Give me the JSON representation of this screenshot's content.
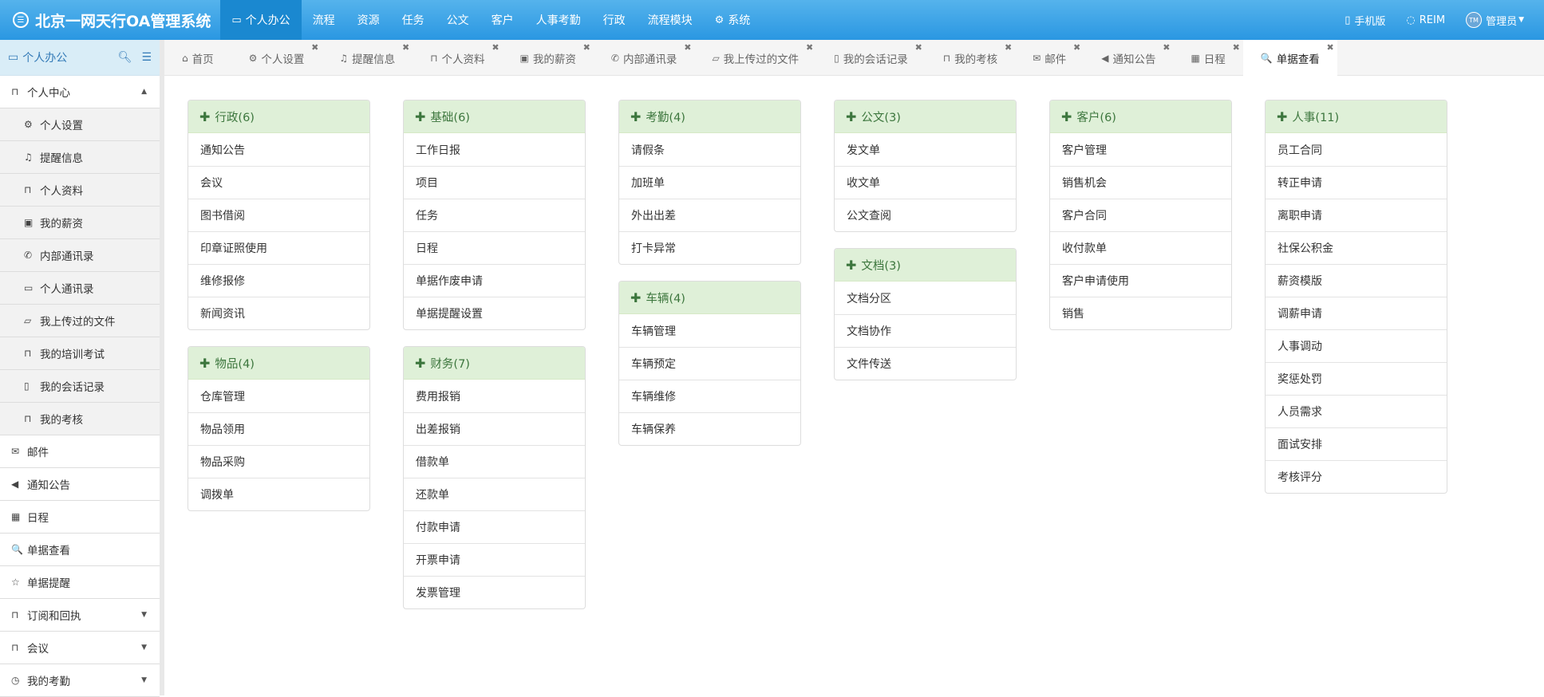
{
  "app": {
    "title": "北京一网天行OA管理系统",
    "logo_icon": "chat-bubble-icon"
  },
  "nav": [
    {
      "label": "个人办公",
      "icon": "desktop-icon",
      "active": true
    },
    {
      "label": "流程"
    },
    {
      "label": "资源"
    },
    {
      "label": "任务"
    },
    {
      "label": "公文"
    },
    {
      "label": "客户"
    },
    {
      "label": "人事考勤"
    },
    {
      "label": "行政"
    },
    {
      "label": "流程模块"
    },
    {
      "label": "系统",
      "icon": "gear-icon"
    }
  ],
  "right": {
    "mobile": "手机版",
    "reim": "REIM",
    "user": "管理员",
    "avatar_text": "TM"
  },
  "sidebar": {
    "title": "个人办公",
    "group": {
      "label": "个人中心",
      "items": [
        {
          "label": "个人设置",
          "icon": "gear-icon",
          "g": "⚙"
        },
        {
          "label": "提醒信息",
          "icon": "bell-icon",
          "g": "♫"
        },
        {
          "label": "个人资料",
          "icon": "bookmark-icon",
          "g": "⊓"
        },
        {
          "label": "我的薪资",
          "icon": "money-icon",
          "g": "▣"
        },
        {
          "label": "内部通讯录",
          "icon": "phone-icon",
          "g": "✆"
        },
        {
          "label": "个人通讯录",
          "icon": "credit-card-icon",
          "g": "▭"
        },
        {
          "label": "我上传过的文件",
          "icon": "folder-icon",
          "g": "▱"
        },
        {
          "label": "我的培训考试",
          "icon": "bookmark-icon",
          "g": "⊓"
        },
        {
          "label": "我的会话记录",
          "icon": "file-icon",
          "g": "▯"
        },
        {
          "label": "我的考核",
          "icon": "bookmark-icon",
          "g": "⊓"
        }
      ]
    },
    "items": [
      {
        "label": "邮件",
        "icon": "envelope-icon",
        "g": "✉"
      },
      {
        "label": "通知公告",
        "icon": "volume-icon",
        "g": "◀"
      },
      {
        "label": "日程",
        "icon": "calendar-icon",
        "g": "▦"
      },
      {
        "label": "单据查看",
        "icon": "search-icon",
        "g": "🔍"
      },
      {
        "label": "单据提醒",
        "icon": "star-icon",
        "g": "☆"
      },
      {
        "label": "订阅和回执",
        "icon": "bookmark-icon",
        "g": "⊓",
        "caret": true
      },
      {
        "label": "会议",
        "icon": "bookmark-icon",
        "g": "⊓",
        "caret": true
      },
      {
        "label": "我的考勤",
        "icon": "clock-icon",
        "g": "◷",
        "caret": true
      }
    ]
  },
  "tabs": [
    {
      "label": "首页",
      "icon": "home-icon",
      "g": "⌂",
      "closable": false
    },
    {
      "label": "个人设置",
      "icon": "gear-icon",
      "g": "⚙"
    },
    {
      "label": "提醒信息",
      "icon": "bell-icon",
      "g": "♫"
    },
    {
      "label": "个人资料",
      "icon": "bookmark-icon",
      "g": "⊓"
    },
    {
      "label": "我的薪资",
      "icon": "money-icon",
      "g": "▣"
    },
    {
      "label": "内部通讯录",
      "icon": "phone-icon",
      "g": "✆"
    },
    {
      "label": "我上传过的文件",
      "icon": "folder-icon",
      "g": "▱"
    },
    {
      "label": "我的会话记录",
      "icon": "file-icon",
      "g": "▯"
    },
    {
      "label": "我的考核",
      "icon": "bookmark-icon",
      "g": "⊓"
    },
    {
      "label": "邮件",
      "icon": "envelope-icon",
      "g": "✉"
    },
    {
      "label": "通知公告",
      "icon": "volume-icon",
      "g": "◀"
    },
    {
      "label": "日程",
      "icon": "calendar-icon",
      "g": "▦"
    },
    {
      "label": "单据查看",
      "icon": "search-icon",
      "g": "🔍",
      "active": true
    }
  ],
  "cards": [
    [
      {
        "title": "行政(6)",
        "items": [
          "通知公告",
          "会议",
          "图书借阅",
          "印章证照使用",
          "维修报修",
          "新闻资讯"
        ]
      },
      {
        "title": "物品(4)",
        "items": [
          "仓库管理",
          "物品领用",
          "物品采购",
          "调拨单"
        ]
      }
    ],
    [
      {
        "title": "基础(6)",
        "items": [
          "工作日报",
          "项目",
          "任务",
          "日程",
          "单据作废申请",
          "单据提醒设置"
        ]
      },
      {
        "title": "财务(7)",
        "items": [
          "费用报销",
          "出差报销",
          "借款单",
          "还款单",
          "付款申请",
          "开票申请",
          "发票管理"
        ]
      }
    ],
    [
      {
        "title": "考勤(4)",
        "items": [
          "请假条",
          "加班单",
          "外出出差",
          "打卡异常"
        ]
      },
      {
        "title": "车辆(4)",
        "items": [
          "车辆管理",
          "车辆预定",
          "车辆维修",
          "车辆保养"
        ]
      }
    ],
    [
      {
        "title": "公文(3)",
        "items": [
          "发文单",
          "收文单",
          "公文查阅"
        ]
      },
      {
        "title": "文档(3)",
        "items": [
          "文档分区",
          "文档协作",
          "文件传送"
        ]
      }
    ],
    [
      {
        "title": "客户(6)",
        "items": [
          "客户管理",
          "销售机会",
          "客户合同",
          "收付款单",
          "客户申请使用",
          "销售"
        ]
      }
    ],
    [
      {
        "title": "人事(11)",
        "items": [
          "员工合同",
          "转正申请",
          "离职申请",
          "社保公积金",
          "薪资模版",
          "调薪申请",
          "人事调动",
          "奖惩处罚",
          "人员需求",
          "面试安排",
          "考核评分"
        ]
      }
    ]
  ],
  "colors": {
    "header": "#2a97e2",
    "card_header": "#dff0d8",
    "card_title": "#3c763d",
    "sidebar_header": "#d9edf7"
  }
}
